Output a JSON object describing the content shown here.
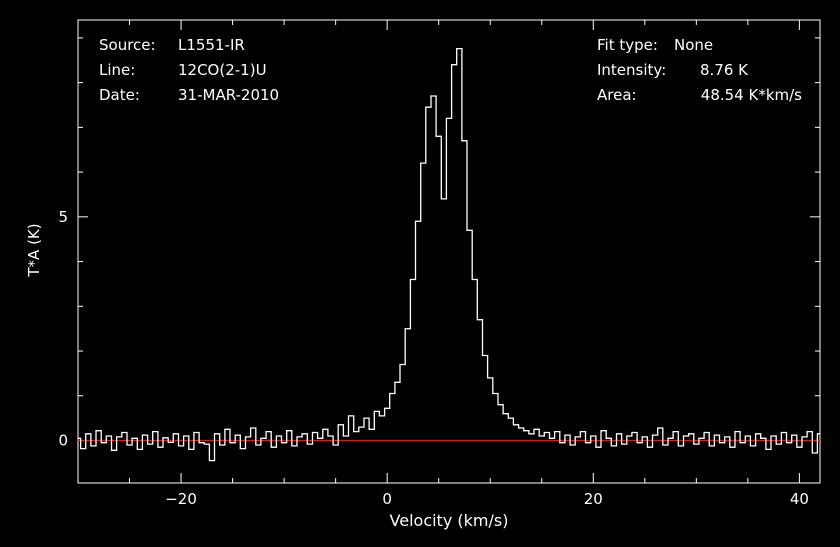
{
  "header": {
    "left": [
      {
        "label": "Source:",
        "value": "L1551-IR"
      },
      {
        "label": "Line:",
        "value": "12CO(2-1)U"
      },
      {
        "label": "Date:",
        "value": "31-MAR-2010"
      }
    ],
    "right": [
      {
        "label": "Fit type:",
        "value": "None"
      },
      {
        "label": "Intensity:",
        "value": "8.76 K"
      },
      {
        "label": "Area:",
        "value": "48.54 K*km/s"
      }
    ]
  },
  "chart_data": {
    "type": "line",
    "xlabel": "Velocity (km/s)",
    "ylabel": "T*A (K)",
    "xlim": [
      -30,
      42
    ],
    "ylim": [
      -0.95,
      9.4
    ],
    "x_ticks": [
      -20,
      0,
      20,
      40
    ],
    "y_ticks": [
      0,
      5
    ],
    "grid": false,
    "baseline": {
      "y": 0,
      "color": "#cc2222"
    },
    "colors": {
      "background": "#000000",
      "axes": "#ffffff",
      "spectrum": "#ffffff",
      "baseline": "#cc2222"
    },
    "series": [
      {
        "x": [
          -30.0,
          -29.5,
          -29.0,
          -28.5,
          -28.0,
          -27.5,
          -27.0,
          -26.5,
          -26.0,
          -25.5,
          -25.0,
          -24.5,
          -24.0,
          -23.5,
          -23.0,
          -22.5,
          -22.0,
          -21.5,
          -21.0,
          -20.5,
          -20.0,
          -19.5,
          -19.0,
          -18.5,
          -18.0,
          -17.5,
          -17.0,
          -16.5,
          -16.0,
          -15.5,
          -15.0,
          -14.5,
          -14.0,
          -13.5,
          -13.0,
          -12.5,
          -12.0,
          -11.5,
          -11.0,
          -10.5,
          -10.0,
          -9.5,
          -9.0,
          -8.5,
          -8.0,
          -7.5,
          -7.0,
          -6.5,
          -6.0,
          -5.5,
          -5.0,
          -4.5,
          -4.0,
          -3.5,
          -3.0,
          -2.5,
          -2.0,
          -1.5,
          -1.0,
          -0.5,
          0.0,
          0.5,
          1.0,
          1.5,
          2.0,
          2.5,
          3.0,
          3.5,
          4.0,
          4.5,
          5.0,
          5.5,
          6.0,
          6.5,
          7.0,
          7.5,
          8.0,
          8.5,
          9.0,
          9.5,
          10.0,
          10.5,
          11.0,
          11.5,
          12.0,
          12.5,
          13.0,
          13.5,
          14.0,
          14.5,
          15.0,
          15.5,
          16.0,
          16.5,
          17.0,
          17.5,
          18.0,
          18.5,
          19.0,
          19.5,
          20.0,
          20.5,
          21.0,
          21.5,
          22.0,
          22.5,
          23.0,
          23.5,
          24.0,
          24.5,
          25.0,
          25.5,
          26.0,
          26.5,
          27.0,
          27.5,
          28.0,
          28.5,
          29.0,
          29.5,
          30.0,
          30.5,
          31.0,
          31.5,
          32.0,
          32.5,
          33.0,
          33.5,
          34.0,
          34.5,
          35.0,
          35.5,
          36.0,
          36.5,
          37.0,
          37.5,
          38.0,
          38.5,
          39.0,
          39.5,
          40.0,
          40.5,
          41.0,
          41.5,
          42.0
        ],
        "y": [
          0.05,
          -0.18,
          0.15,
          -0.12,
          0.22,
          -0.05,
          0.1,
          -0.22,
          0.08,
          0.18,
          -0.1,
          0.05,
          -0.2,
          0.12,
          -0.08,
          0.2,
          -0.15,
          0.06,
          -0.04,
          0.15,
          -0.12,
          0.1,
          -0.2,
          0.18,
          -0.05,
          -0.08,
          -0.45,
          0.15,
          -0.1,
          0.25,
          -0.05,
          0.12,
          -0.18,
          0.08,
          0.28,
          -0.1,
          0.05,
          0.2,
          -0.15,
          0.1,
          -0.05,
          0.22,
          -0.12,
          0.08,
          0.15,
          -0.08,
          0.18,
          0.05,
          0.25,
          0.1,
          -0.1,
          0.35,
          0.1,
          0.55,
          0.2,
          0.3,
          0.5,
          0.25,
          0.65,
          0.55,
          0.72,
          1.05,
          1.3,
          1.7,
          2.5,
          3.6,
          4.9,
          6.2,
          7.45,
          7.7,
          6.8,
          5.4,
          7.2,
          8.4,
          8.76,
          6.7,
          4.7,
          3.6,
          2.7,
          1.9,
          1.4,
          1.05,
          0.8,
          0.6,
          0.5,
          0.35,
          0.28,
          0.22,
          0.15,
          0.25,
          0.1,
          0.18,
          0.05,
          0.2,
          -0.05,
          0.12,
          -0.1,
          0.08,
          0.2,
          -0.05,
          0.1,
          -0.15,
          0.22,
          0.05,
          -0.12,
          0.15,
          -0.08,
          0.1,
          0.18,
          -0.05,
          0.08,
          -0.15,
          0.12,
          0.28,
          -0.1,
          0.05,
          0.2,
          -0.12,
          0.1,
          0.15,
          -0.08,
          0.05,
          0.18,
          -0.12,
          0.12,
          -0.05,
          0.08,
          -0.15,
          0.2,
          -0.05,
          0.1,
          -0.12,
          0.15,
          0.05,
          -0.2,
          0.1,
          -0.08,
          0.18,
          -0.05,
          0.12,
          -0.15,
          0.08,
          0.2,
          -0.28,
          0.15
        ]
      }
    ]
  }
}
